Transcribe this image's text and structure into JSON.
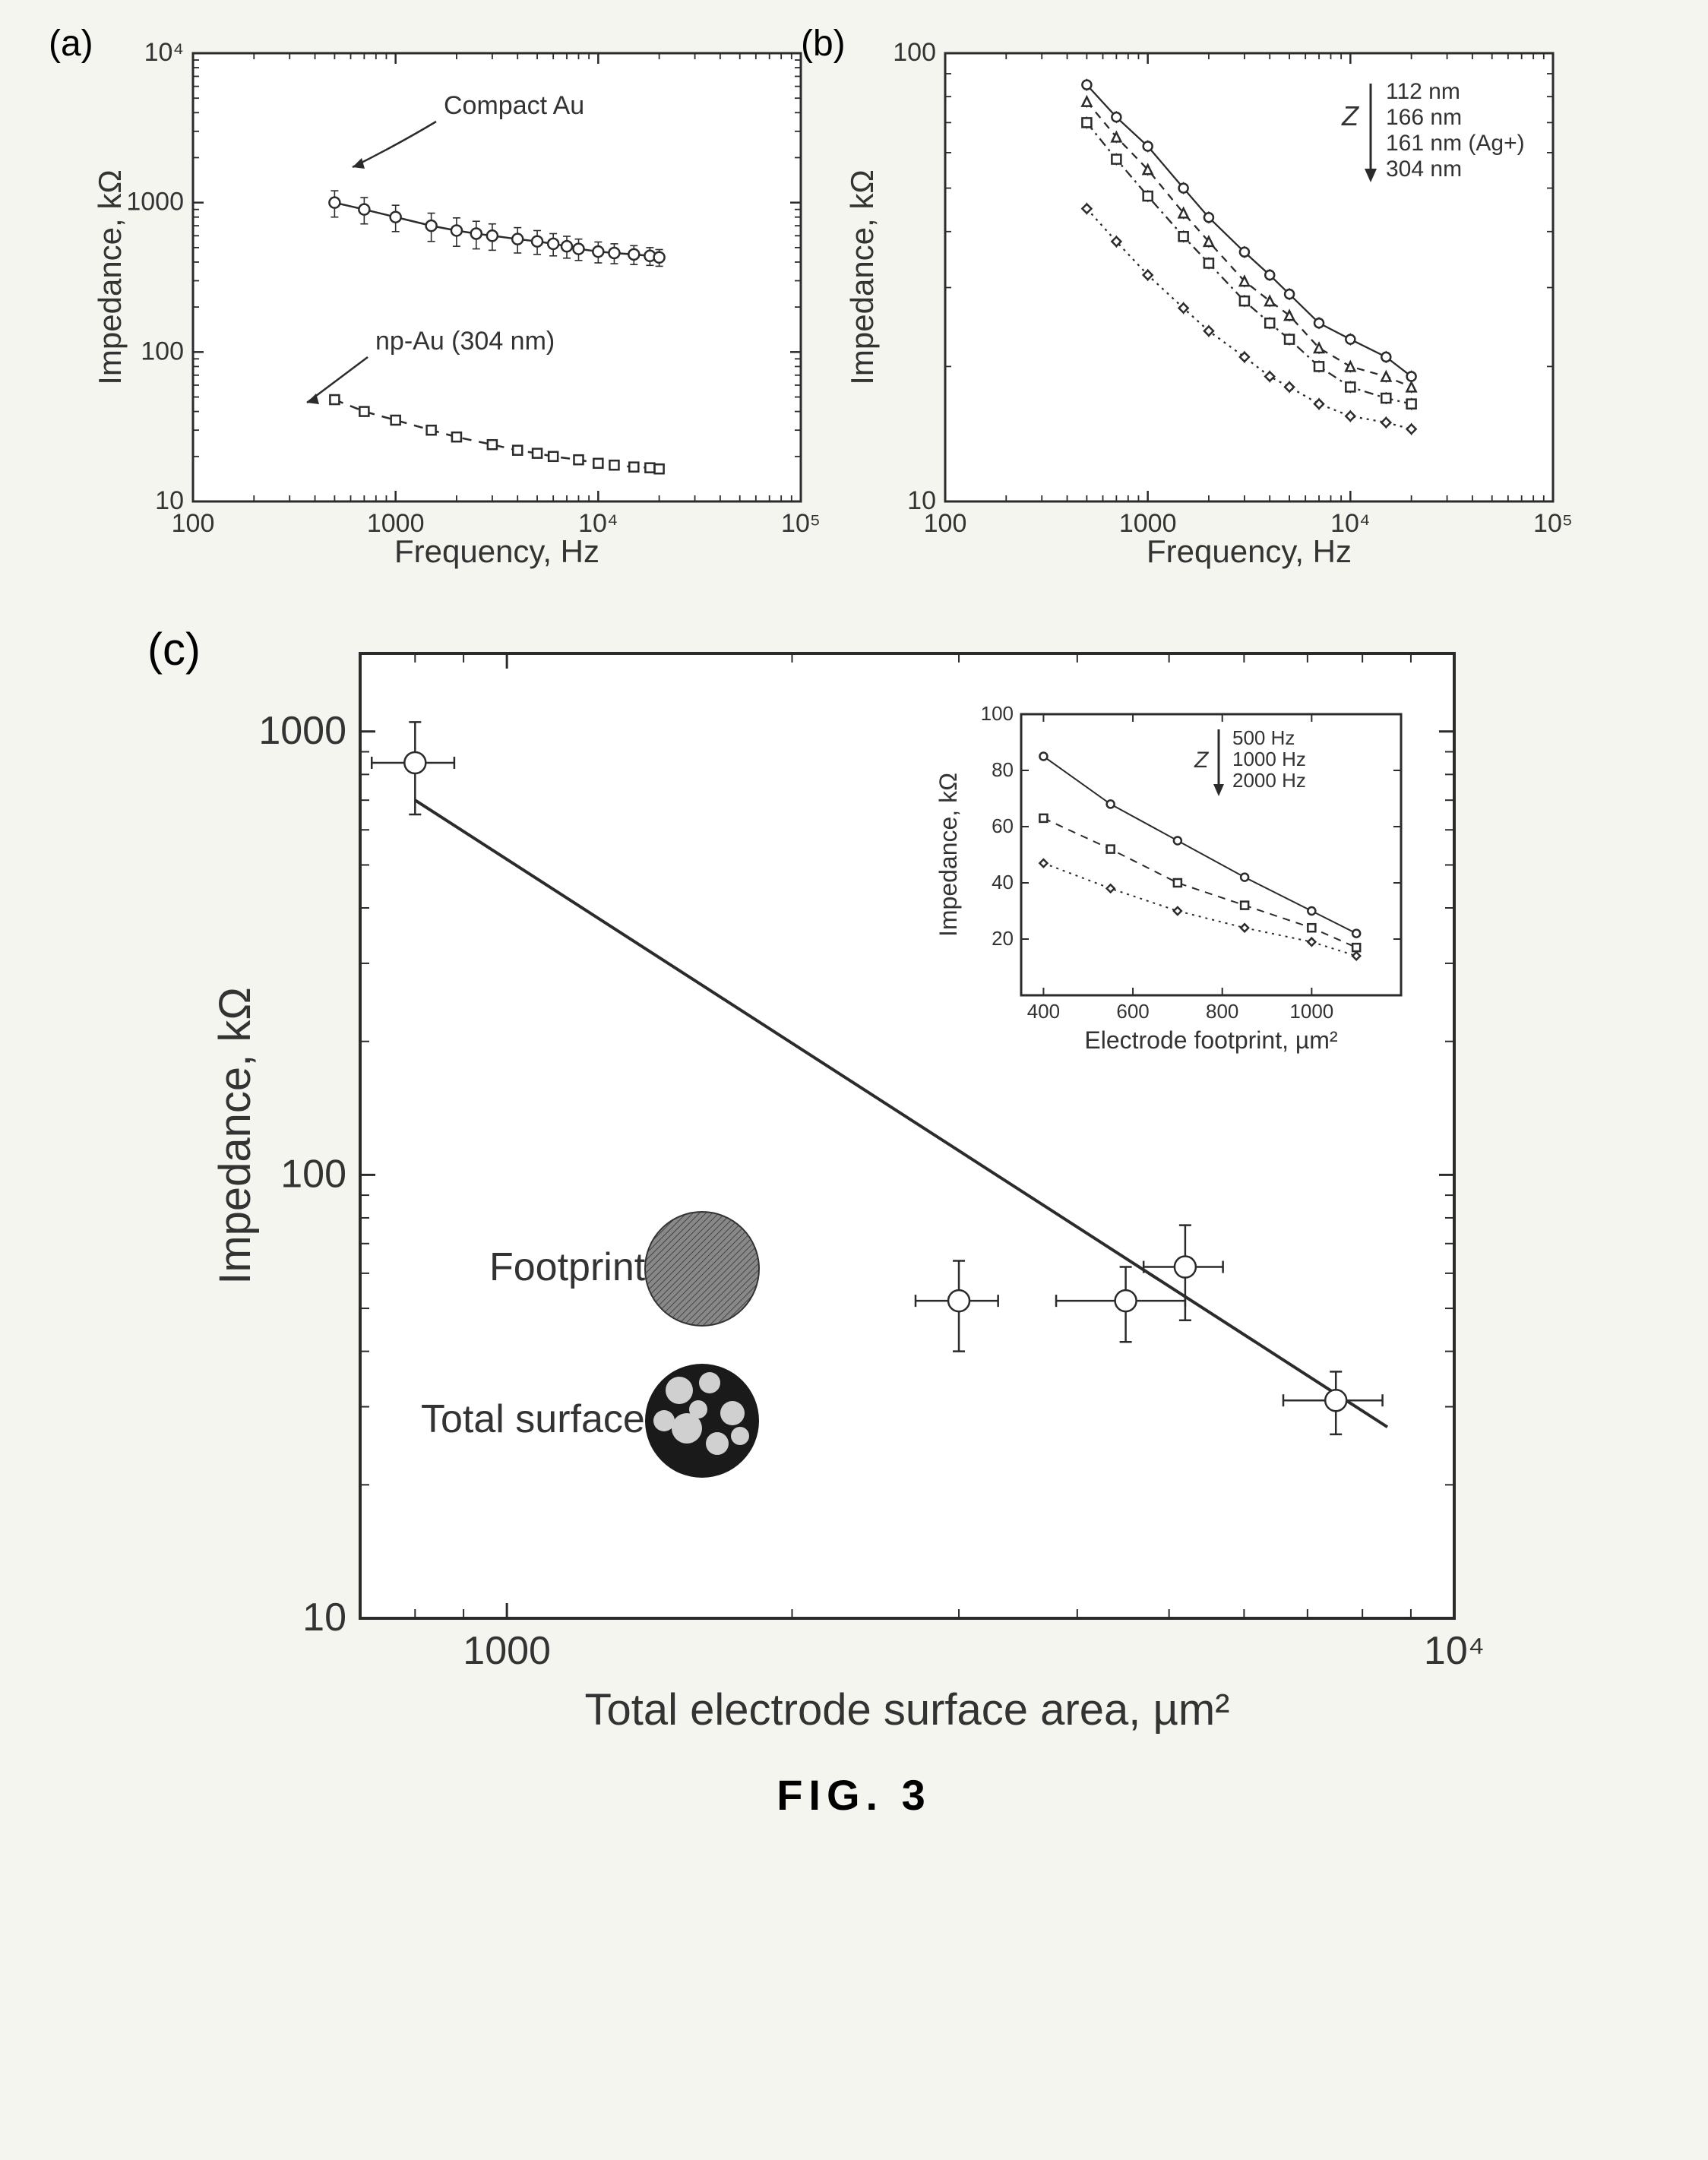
{
  "caption": "FIG. 3",
  "panelA": {
    "label": "(a)",
    "xlabel": "Frequency, Hz",
    "ylabel": "Impedance, kΩ",
    "xlim": [
      100,
      100000
    ],
    "ylim": [
      10,
      10000
    ],
    "xticks": [
      100,
      1000,
      10000,
      100000
    ],
    "xticklabels": [
      "100",
      "1000",
      "10⁴",
      "10⁵"
    ],
    "yticks": [
      10,
      100,
      1000,
      10000
    ],
    "yticklabels": [
      "10",
      "100",
      "1000",
      "10⁴"
    ],
    "series1": {
      "name": "Compact Au",
      "marker": "circle",
      "color": "#333333",
      "line": "solid",
      "x": [
        500,
        700,
        1000,
        1500,
        2000,
        2500,
        3000,
        4000,
        5000,
        6000,
        7000,
        8000,
        10000,
        12000,
        15000,
        18000,
        20000
      ],
      "y": [
        1000,
        900,
        800,
        700,
        650,
        620,
        600,
        570,
        550,
        530,
        510,
        490,
        470,
        460,
        450,
        440,
        430
      ],
      "yerr": [
        200,
        180,
        160,
        150,
        140,
        130,
        120,
        110,
        100,
        90,
        85,
        80,
        75,
        70,
        65,
        60,
        55
      ]
    },
    "series2": {
      "name": "np-Au (304 nm)",
      "marker": "square",
      "color": "#333333",
      "line": "dashed",
      "x": [
        500,
        700,
        1000,
        1500,
        2000,
        3000,
        4000,
        5000,
        6000,
        8000,
        10000,
        12000,
        15000,
        18000,
        20000
      ],
      "y": [
        48,
        40,
        35,
        30,
        27,
        24,
        22,
        21,
        20,
        19,
        18,
        17.5,
        17,
        16.8,
        16.5
      ]
    }
  },
  "panelB": {
    "label": "(b)",
    "xlabel": "Frequency, Hz",
    "ylabel": "Impedance, kΩ",
    "xlim": [
      100,
      100000
    ],
    "ylim": [
      10,
      100
    ],
    "xticks": [
      100,
      1000,
      10000,
      100000
    ],
    "xticklabels": [
      "100",
      "1000",
      "10⁴",
      "10⁵"
    ],
    "yticks": [
      10,
      100
    ],
    "yticklabels": [
      "10",
      "100"
    ],
    "z_label": "Z",
    "legend": [
      "112 nm",
      "166 nm",
      "161 nm (Ag+)",
      "304 nm"
    ],
    "series": [
      {
        "name": "112 nm",
        "marker": "circle",
        "line": "solid",
        "x": [
          500,
          700,
          1000,
          1500,
          2000,
          3000,
          4000,
          5000,
          7000,
          10000,
          15000,
          20000
        ],
        "y": [
          85,
          72,
          62,
          50,
          43,
          36,
          32,
          29,
          25,
          23,
          21,
          19
        ]
      },
      {
        "name": "166 nm",
        "marker": "triangle",
        "line": "dash",
        "x": [
          500,
          700,
          1000,
          1500,
          2000,
          3000,
          4000,
          5000,
          7000,
          10000,
          15000,
          20000
        ],
        "y": [
          78,
          65,
          55,
          44,
          38,
          31,
          28,
          26,
          22,
          20,
          19,
          18
        ]
      },
      {
        "name": "161 nm (Ag+)",
        "marker": "square",
        "line": "dashdot",
        "x": [
          500,
          700,
          1000,
          1500,
          2000,
          3000,
          4000,
          5000,
          7000,
          10000,
          15000,
          20000
        ],
        "y": [
          70,
          58,
          48,
          39,
          34,
          28,
          25,
          23,
          20,
          18,
          17,
          16.5
        ]
      },
      {
        "name": "304 nm",
        "marker": "diamond",
        "line": "dot",
        "x": [
          500,
          700,
          1000,
          1500,
          2000,
          3000,
          4000,
          5000,
          7000,
          10000,
          15000,
          20000
        ],
        "y": [
          45,
          38,
          32,
          27,
          24,
          21,
          19,
          18,
          16.5,
          15.5,
          15,
          14.5
        ]
      }
    ]
  },
  "panelC": {
    "label": "(c)",
    "xlabel": "Total electrode surface area, µm²",
    "ylabel": "Impedance, kΩ",
    "xlim": [
      700,
      10000
    ],
    "ylim": [
      10,
      1500
    ],
    "xticks": [
      1000,
      10000
    ],
    "xticklabels": [
      "1000",
      "10⁴"
    ],
    "yticks": [
      10,
      100,
      1000
    ],
    "yticklabels": [
      "10",
      "100",
      "1000"
    ],
    "footprint_label": "Footprint",
    "totalsurface_label": "Total surface",
    "points": [
      {
        "x": 800,
        "y": 850,
        "xerr": 80,
        "yerr": 200
      },
      {
        "x": 3000,
        "y": 52,
        "xerr": 300,
        "yerr": 12
      },
      {
        "x": 4500,
        "y": 52,
        "xerr": 700,
        "yerr": 10
      },
      {
        "x": 5200,
        "y": 62,
        "xerr": 500,
        "yerr": 15
      },
      {
        "x": 7500,
        "y": 31,
        "xerr": 900,
        "yerr": 5
      }
    ],
    "fit_line": {
      "x1": 800,
      "y1": 700,
      "x2": 8500,
      "y2": 27
    },
    "inset": {
      "xlabel": "Electrode footprint, µm²",
      "ylabel": "Impedance, kΩ",
      "xlim": [
        350,
        1200
      ],
      "ylim": [
        0,
        100
      ],
      "xticks": [
        400,
        600,
        800,
        1000
      ],
      "yticks": [
        20,
        40,
        60,
        80,
        100
      ],
      "z_label": "Z",
      "legend": [
        "500 Hz",
        "1000 Hz",
        "2000 Hz"
      ],
      "series": [
        {
          "line": "solid",
          "marker": "circle",
          "x": [
            400,
            550,
            700,
            850,
            1000,
            1100
          ],
          "y": [
            85,
            68,
            55,
            42,
            30,
            22
          ]
        },
        {
          "line": "dash",
          "marker": "square",
          "x": [
            400,
            550,
            700,
            850,
            1000,
            1100
          ],
          "y": [
            63,
            52,
            40,
            32,
            24,
            17
          ]
        },
        {
          "line": "dot",
          "marker": "diamond",
          "x": [
            400,
            550,
            700,
            850,
            1000,
            1100
          ],
          "y": [
            47,
            38,
            30,
            24,
            19,
            14
          ]
        }
      ]
    }
  },
  "colors": {
    "stroke": "#2b2b2b",
    "background": "#ffffff",
    "panel_bg": "#f7f7f2",
    "footprint_fill": "#555555",
    "surface_dark": "#1a1a1a",
    "surface_light": "#d0d0d0"
  }
}
